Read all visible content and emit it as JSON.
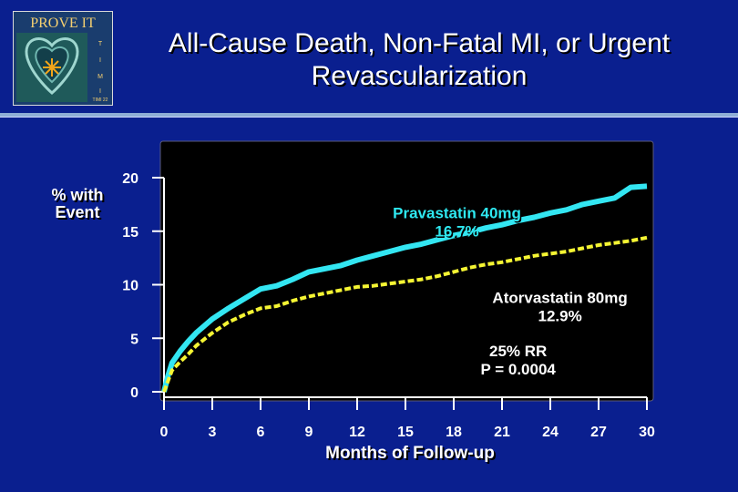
{
  "logo": {
    "text_top": "PROVE IT",
    "side_letters": [
      "T",
      "I",
      "M",
      "I"
    ],
    "bottom": "TIMI 22",
    "icon": "heart-star-icon"
  },
  "title": {
    "line1": "All-Cause Death, Non-Fatal MI, or Urgent",
    "line2": "Revascularization"
  },
  "colors": {
    "background": "#0a1f8f",
    "plot_bg": "#000000",
    "pravastatin": "#33e6f2",
    "atorvastatin": "#f5f533",
    "axis": "#ffffff",
    "rule": "#8faed6"
  },
  "chart_data": {
    "type": "line",
    "xlabel": "Months of Follow-up",
    "ylabel": "% with Event",
    "xlim": [
      0,
      30
    ],
    "ylim": [
      0,
      20
    ],
    "x_ticks": [
      0,
      3,
      6,
      9,
      12,
      15,
      18,
      21,
      24,
      27,
      30
    ],
    "y_ticks": [
      0,
      5,
      10,
      15,
      20
    ],
    "grid": false,
    "series": [
      {
        "name": "Pravastatin 40mg",
        "label_value": "16.7%",
        "style": "solid",
        "x": [
          0,
          0.25,
          0.5,
          1,
          1.5,
          2,
          3,
          4,
          5,
          6,
          7,
          8,
          9,
          10,
          11,
          12,
          13,
          14,
          15,
          16,
          17,
          18,
          19,
          20,
          21,
          22,
          23,
          24,
          25,
          26,
          27,
          28,
          29,
          30
        ],
        "y": [
          0,
          1.5,
          2.7,
          3.8,
          4.7,
          5.5,
          6.8,
          7.8,
          8.7,
          9.6,
          9.9,
          10.5,
          11.2,
          11.5,
          11.8,
          12.3,
          12.7,
          13.1,
          13.5,
          13.8,
          14.2,
          14.6,
          14.9,
          15.3,
          15.6,
          16.0,
          16.3,
          16.7,
          17.0,
          17.5,
          17.8,
          18.1,
          19.1,
          19.2
        ]
      },
      {
        "name": "Atorvastatin 80mg",
        "label_value": "12.9%",
        "style": "dashed",
        "x": [
          0,
          0.25,
          0.5,
          1,
          1.5,
          2,
          3,
          4,
          5,
          6,
          7,
          8,
          9,
          10,
          11,
          12,
          13,
          14,
          15,
          16,
          17,
          18,
          19,
          20,
          21,
          22,
          23,
          24,
          25,
          26,
          27,
          28,
          29,
          30
        ],
        "y": [
          0,
          1.0,
          2.0,
          2.8,
          3.5,
          4.3,
          5.5,
          6.5,
          7.2,
          7.8,
          8.0,
          8.5,
          8.9,
          9.2,
          9.5,
          9.8,
          9.9,
          10.1,
          10.3,
          10.5,
          10.8,
          11.2,
          11.6,
          11.9,
          12.1,
          12.4,
          12.7,
          12.9,
          13.1,
          13.4,
          13.7,
          13.9,
          14.1,
          14.4
        ]
      }
    ],
    "annotations": [
      {
        "series": 0,
        "text": "Pravastatin 40mg",
        "value": "16.7%",
        "at": [
          18.2,
          16.2
        ]
      },
      {
        "series": 1,
        "text": "Atorvastatin 80mg",
        "value": "12.9%",
        "at": [
          24.6,
          8.3
        ]
      },
      {
        "series": -1,
        "text": "25% RR",
        "value": "P = 0.0004",
        "at": [
          22.0,
          3.3
        ]
      }
    ]
  }
}
